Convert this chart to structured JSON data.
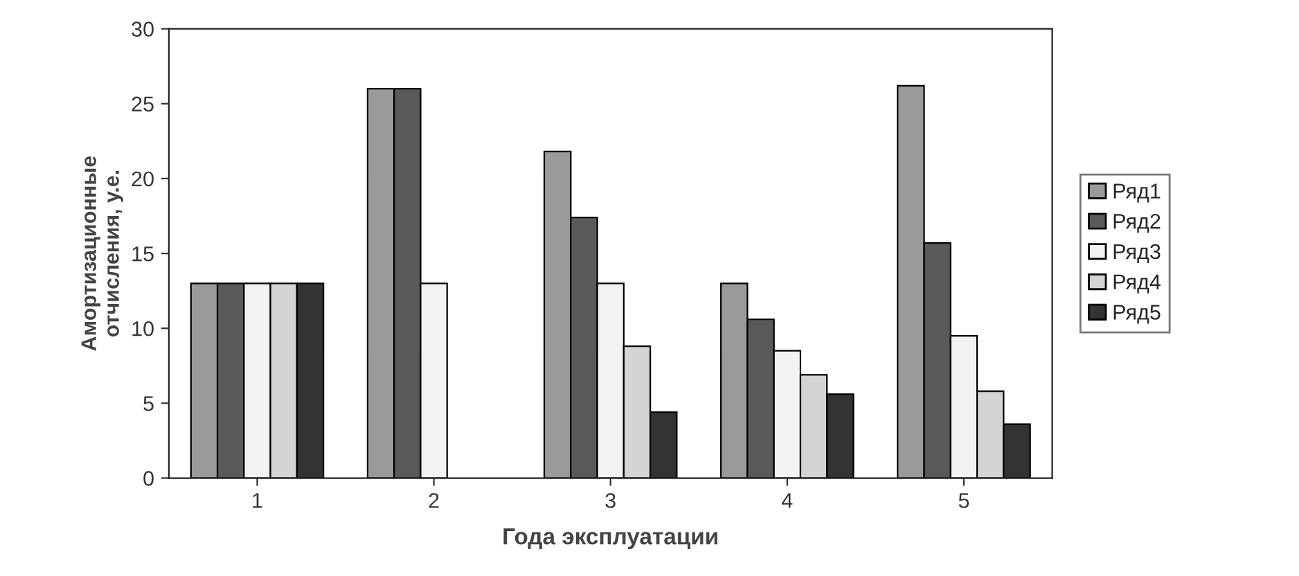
{
  "chart_data": {
    "type": "bar",
    "xlabel": "Года эксплуатации",
    "ylabel": "Амортизационные\nотчисления, у.е.",
    "categories": [
      "1",
      "2",
      "3",
      "4",
      "5"
    ],
    "series": [
      {
        "name": "Ряд1",
        "color": "#9a9a9a",
        "values": [
          13,
          26,
          21.8,
          13,
          26.2
        ]
      },
      {
        "name": "Ряд2",
        "color": "#5a5a5a",
        "values": [
          13,
          26,
          17.4,
          10.6,
          15.7
        ]
      },
      {
        "name": "Ряд3",
        "color": "#f2f2f2",
        "values": [
          13,
          13,
          13,
          8.5,
          9.5
        ]
      },
      {
        "name": "Ряд4",
        "color": "#d4d4d4",
        "values": [
          13,
          0,
          8.8,
          6.9,
          5.8
        ]
      },
      {
        "name": "Ряд5",
        "color": "#333333",
        "values": [
          13,
          0,
          4.4,
          5.6,
          3.6
        ]
      }
    ],
    "ylim": [
      0,
      30
    ],
    "yticks": [
      0,
      5,
      10,
      15,
      20,
      25,
      30
    ],
    "grid": false,
    "legend": "right"
  }
}
